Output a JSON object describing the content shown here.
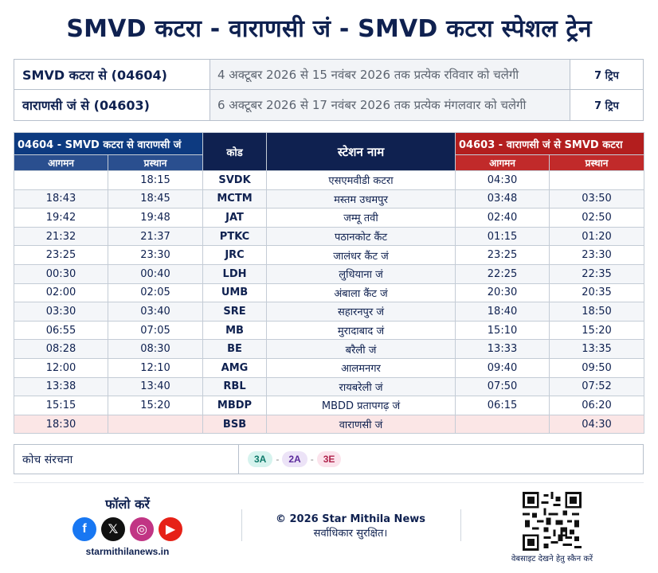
{
  "title": "SMVD कटरा - वाराणसी जं - SMVD कटरा स्पेशल ट्रेन",
  "summary": [
    {
      "train": "SMVD कटरा से (04604)",
      "schedule": "4 अक्टूबर 2026 से 15 नवंबर 2026 तक प्रत्येक रविवार को चलेगी",
      "trips": "7 ट्रिप"
    },
    {
      "train": "वाराणसी जं से (04603)",
      "schedule": "6 अक्टूबर 2026 से 17 नवंबर 2026 तक प्रत्येक मंगलवार को चलेगी",
      "trips": "7 ट्रिप"
    }
  ],
  "timetable": {
    "left_header": "04604 - SMVD कटरा से वाराणसी जं",
    "right_header": "04603 - वाराणसी जं से SMVD कटरा",
    "code_header": "कोड",
    "station_header": "स्टेशन नाम",
    "arrival": "आगमन",
    "departure": "प्रस्थान",
    "rows": [
      {
        "arr1": "",
        "dep1": "18:15",
        "code": "SVDK",
        "station": "एसएमवीडी कटरा",
        "arr2": "04:30",
        "dep2": ""
      },
      {
        "arr1": "18:43",
        "dep1": "18:45",
        "code": "MCTM",
        "station": "मस्तम उधमपुर",
        "arr2": "03:48",
        "dep2": "03:50"
      },
      {
        "arr1": "19:42",
        "dep1": "19:48",
        "code": "JAT",
        "station": "जम्मू तवी",
        "arr2": "02:40",
        "dep2": "02:50"
      },
      {
        "arr1": "21:32",
        "dep1": "21:37",
        "code": "PTKC",
        "station": "पठानकोट कैंट",
        "arr2": "01:15",
        "dep2": "01:20"
      },
      {
        "arr1": "23:25",
        "dep1": "23:30",
        "code": "JRC",
        "station": "जालंधर कैंट जं",
        "arr2": "23:25",
        "dep2": "23:30"
      },
      {
        "arr1": "00:30",
        "dep1": "00:40",
        "code": "LDH",
        "station": "लुधियाना जं",
        "arr2": "22:25",
        "dep2": "22:35"
      },
      {
        "arr1": "02:00",
        "dep1": "02:05",
        "code": "UMB",
        "station": "अंबाला कैंट जं",
        "arr2": "20:30",
        "dep2": "20:35"
      },
      {
        "arr1": "03:30",
        "dep1": "03:40",
        "code": "SRE",
        "station": "सहारनपुर जं",
        "arr2": "18:40",
        "dep2": "18:50"
      },
      {
        "arr1": "06:55",
        "dep1": "07:05",
        "code": "MB",
        "station": "मुरादाबाद जं",
        "arr2": "15:10",
        "dep2": "15:20"
      },
      {
        "arr1": "08:28",
        "dep1": "08:30",
        "code": "BE",
        "station": "बरैली जं",
        "arr2": "13:33",
        "dep2": "13:35"
      },
      {
        "arr1": "12:00",
        "dep1": "12:10",
        "code": "AMG",
        "station": "आलमनगर",
        "arr2": "09:40",
        "dep2": "09:50"
      },
      {
        "arr1": "13:38",
        "dep1": "13:40",
        "code": "RBL",
        "station": "रायबरेली जं",
        "arr2": "07:50",
        "dep2": "07:52"
      },
      {
        "arr1": "15:15",
        "dep1": "15:20",
        "code": "MBDP",
        "station": "MBDD प्रतापगढ़ जं",
        "arr2": "06:15",
        "dep2": "06:20"
      },
      {
        "arr1": "18:30",
        "dep1": "",
        "code": "BSB",
        "station": "वाराणसी जं",
        "arr2": "",
        "dep2": "04:30"
      }
    ]
  },
  "coach": {
    "label": "कोच संरचना",
    "classes": [
      {
        "name": "3A",
        "bg": "#d6f3ee",
        "fg": "#0e7a6a"
      },
      {
        "name": "2A",
        "bg": "#ece3f7",
        "fg": "#5b2b9c"
      },
      {
        "name": "3E",
        "bg": "#fbe3ec",
        "fg": "#b0244c"
      }
    ]
  },
  "footer": {
    "follow": "फॉलो करें",
    "site": "starmithilanews.in",
    "copyright": "© 2026 Star Mithila News",
    "rights": "सर्वाधिकार सुरक्षित।",
    "qr_caption": "वेबसाइट देखने हेतु स्कैन करें",
    "social": [
      {
        "icon": "facebook-icon",
        "glyph": "f",
        "color": "#1877f2"
      },
      {
        "icon": "x-icon",
        "glyph": "𝕏",
        "color": "#111111"
      },
      {
        "icon": "instagram-icon",
        "glyph": "◎",
        "color": "#c13584"
      },
      {
        "icon": "youtube-icon",
        "glyph": "▶",
        "color": "#e62117"
      }
    ]
  }
}
